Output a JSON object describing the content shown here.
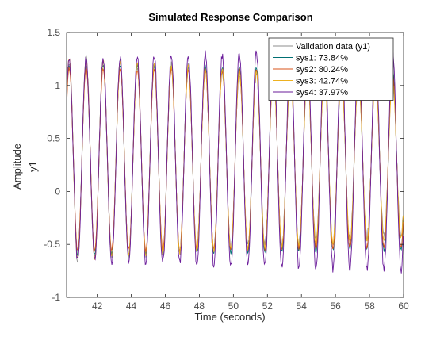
{
  "chart_data": {
    "type": "line",
    "title": "Simulated Response Comparison",
    "xlabel": "Time (seconds)",
    "ylabel": "Amplitude",
    "channel_label": "y1",
    "xlim": [
      40.2,
      60
    ],
    "ylim": [
      -1,
      1.5
    ],
    "xticks": [
      42,
      44,
      46,
      48,
      50,
      52,
      54,
      56,
      58,
      60
    ],
    "yticks": [
      -1,
      -0.5,
      0,
      0.5,
      1,
      1.5
    ],
    "ytick_labels": [
      "-1",
      "-0.5",
      "0",
      "0.5",
      "1",
      "1.5"
    ],
    "grid": false,
    "legend_position": "top-right",
    "signal": {
      "period_s": 1.0,
      "first_peak_s": 40.35,
      "offset": 0.3
    },
    "series": [
      {
        "name": "Validation data (y1)",
        "color": "#8c8c8c",
        "amplitude": [
          0.95,
          0.72
        ],
        "noise": 0.05
      },
      {
        "name": "sys1: 73.84%",
        "color": "#006f73",
        "amplitude": [
          0.9,
          0.85
        ],
        "noise": 0.02
      },
      {
        "name": "sys2: 80.24%",
        "color": "#d95319",
        "amplitude": [
          0.86,
          0.83
        ],
        "noise": 0.02
      },
      {
        "name": "sys3: 42.74%",
        "color": "#edb120",
        "amplitude": [
          0.95,
          0.74
        ],
        "noise": 0.02
      },
      {
        "name": "sys4: 37.97%",
        "color": "#6a1b9a",
        "amplitude": [
          0.95,
          1.05
        ],
        "noise": 0.04
      }
    ]
  }
}
